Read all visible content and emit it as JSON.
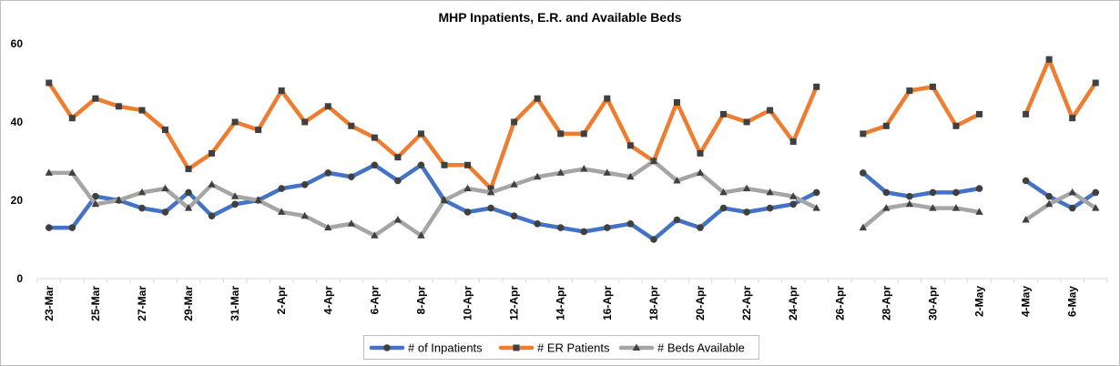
{
  "chart_data": {
    "type": "line",
    "title": "MHP Inpatients, E.R. and Available Beds",
    "ylim": [
      0,
      60
    ],
    "yticks": [
      0,
      20,
      40,
      60
    ],
    "grid": false,
    "legend_position": "bottom",
    "categories": [
      "23-Mar",
      "24-Mar",
      "25-Mar",
      "26-Mar",
      "27-Mar",
      "28-Mar",
      "29-Mar",
      "30-Mar",
      "31-Mar",
      "1-Apr",
      "2-Apr",
      "3-Apr",
      "4-Apr",
      "5-Apr",
      "6-Apr",
      "7-Apr",
      "8-Apr",
      "9-Apr",
      "10-Apr",
      "11-Apr",
      "12-Apr",
      "13-Apr",
      "14-Apr",
      "15-Apr",
      "16-Apr",
      "17-Apr",
      "18-Apr",
      "19-Apr",
      "20-Apr",
      "21-Apr",
      "22-Apr",
      "23-Apr",
      "24-Apr",
      "25-Apr",
      "26-Apr",
      "27-Apr",
      "28-Apr",
      "29-Apr",
      "30-Apr",
      "1-May",
      "2-May",
      "3-May",
      "4-May",
      "5-May",
      "6-May",
      "7-May"
    ],
    "tick_labels": [
      "23-Mar",
      "25-Mar",
      "27-Mar",
      "29-Mar",
      "31-Mar",
      "2-Apr",
      "4-Apr",
      "6-Apr",
      "8-Apr",
      "10-Apr",
      "12-Apr",
      "14-Apr",
      "16-Apr",
      "18-Apr",
      "20-Apr",
      "22-Apr",
      "24-Apr",
      "26-Apr",
      "28-Apr",
      "30-Apr",
      "2-May",
      "4-May",
      "6-May"
    ],
    "series": [
      {
        "name": "# of Inpatients",
        "color": "#4472c4",
        "marker": "circle",
        "values": [
          13,
          13,
          21,
          20,
          18,
          17,
          22,
          16,
          19,
          20,
          23,
          24,
          27,
          26,
          29,
          25,
          29,
          20,
          17,
          18,
          16,
          14,
          13,
          12,
          13,
          14,
          10,
          15,
          13,
          18,
          17,
          18,
          19,
          22,
          null,
          27,
          22,
          21,
          22,
          22,
          23,
          null,
          25,
          21,
          18,
          22
        ]
      },
      {
        "name": "# ER Patients",
        "color": "#ed7d31",
        "marker": "square",
        "values": [
          50,
          41,
          46,
          44,
          43,
          38,
          28,
          32,
          40,
          38,
          48,
          40,
          44,
          39,
          36,
          31,
          37,
          29,
          29,
          23,
          40,
          46,
          37,
          37,
          46,
          34,
          30,
          45,
          32,
          42,
          40,
          43,
          35,
          49,
          null,
          37,
          39,
          48,
          49,
          39,
          42,
          null,
          42,
          56,
          41,
          50
        ]
      },
      {
        "name": "# Beds Available",
        "color": "#a5a5a5",
        "marker": "triangle",
        "values": [
          27,
          27,
          19,
          20,
          22,
          23,
          18,
          24,
          21,
          20,
          17,
          16,
          13,
          14,
          11,
          15,
          11,
          20,
          23,
          22,
          24,
          26,
          27,
          28,
          27,
          26,
          30,
          25,
          27,
          22,
          23,
          22,
          21,
          18,
          null,
          13,
          18,
          19,
          18,
          18,
          17,
          null,
          15,
          19,
          22,
          18
        ]
      }
    ]
  }
}
